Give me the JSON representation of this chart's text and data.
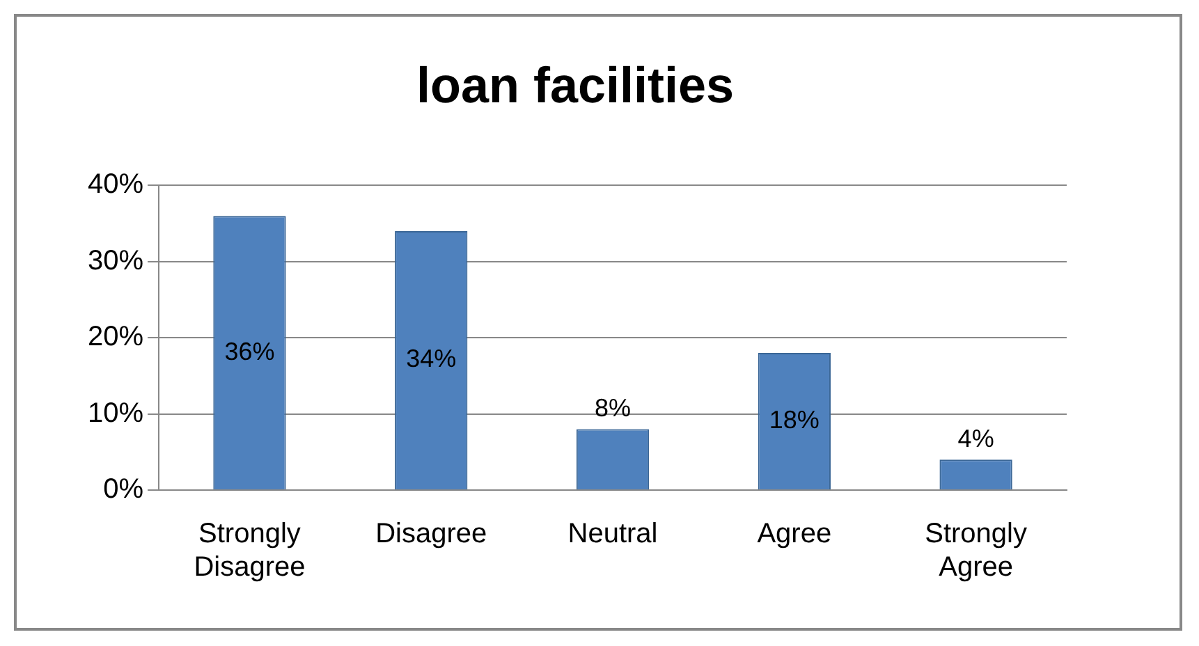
{
  "chart_data": {
    "type": "bar",
    "title": "loan facilities",
    "categories": [
      "Strongly Disagree",
      "Disagree",
      "Neutral",
      "Agree",
      "Strongly Agree"
    ],
    "values": [
      36,
      34,
      8,
      18,
      4
    ],
    "value_labels": [
      "36%",
      "34%",
      "8%",
      "18%",
      "4%"
    ],
    "color": "#4f81bd",
    "ylim": [
      0,
      40
    ],
    "yticks": [
      {
        "value": 0,
        "label": "0%"
      },
      {
        "value": 10,
        "label": "10%"
      },
      {
        "value": 20,
        "label": "20%"
      },
      {
        "value": 30,
        "label": "30%"
      },
      {
        "value": 40,
        "label": "40%"
      }
    ],
    "grid": "y",
    "legend": false
  }
}
